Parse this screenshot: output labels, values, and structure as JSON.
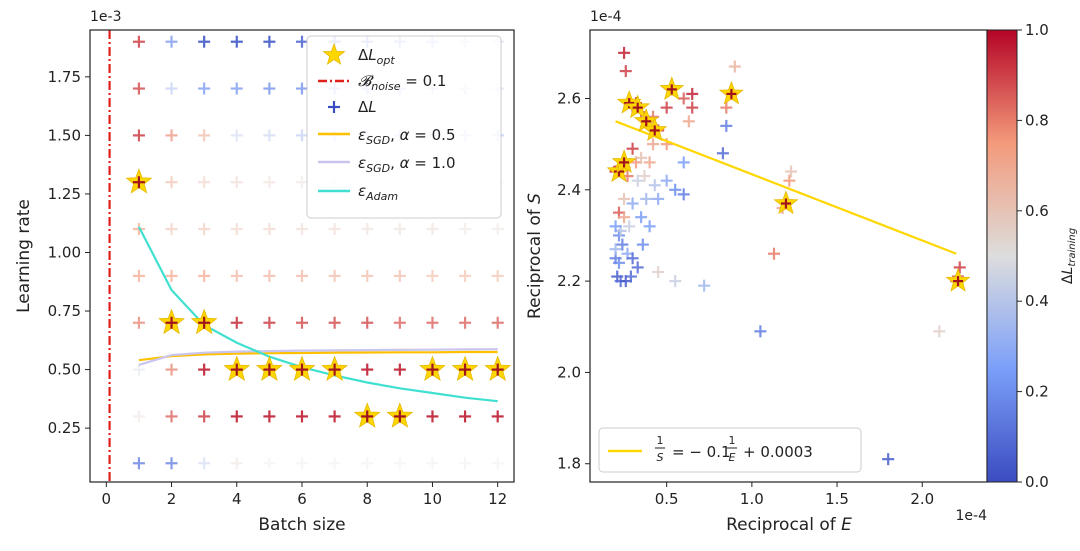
{
  "chart_data": [
    {
      "type": "scatter",
      "xlabel": "Batch size",
      "ylabel": "Learning rate",
      "y_multiplier": "1e-3",
      "xlim": [
        -0.5,
        12.5
      ],
      "ylim": [
        0.02,
        1.95
      ],
      "xticks": [
        0,
        2,
        4,
        6,
        8,
        10,
        12
      ],
      "xtick_labels": [
        "0",
        "2",
        "4",
        "6",
        "8",
        "10",
        "12"
      ],
      "yticks": [
        0.25,
        0.5,
        0.75,
        1.0,
        1.25,
        1.5,
        1.75
      ],
      "ytick_labels": [
        "0.25",
        "0.50",
        "0.75",
        "1.00",
        "1.25",
        "1.50",
        "1.75"
      ],
      "grid": false,
      "legend_position": "top-right",
      "legend": [
        "ΔL_opt",
        "B_noise = 0.1",
        "ΔL",
        "ε_SGD, α = 0.5",
        "ε_SGD, α = 1.0",
        "ε_Adam"
      ],
      "b_noise": 0.1,
      "batch_sizes": [
        1,
        2,
        3,
        4,
        5,
        6,
        7,
        8,
        9,
        10,
        11,
        12
      ],
      "learning_rates": [
        0.1,
        0.3,
        0.5,
        0.7,
        0.9,
        1.1,
        1.3,
        1.5,
        1.7,
        1.9
      ],
      "delta_L_grid": [
        [
          0.15,
          0.15,
          0.4,
          0.55,
          0.5,
          0.5,
          0.5,
          0.5,
          0.5,
          0.5,
          0.5,
          0.5
        ],
        [
          0.55,
          0.85,
          0.9,
          0.95,
          0.95,
          0.95,
          0.95,
          0.95,
          0.95,
          0.95,
          0.95,
          0.95
        ],
        [
          0.45,
          0.8,
          0.95,
          0.95,
          0.95,
          0.95,
          0.95,
          0.95,
          0.95,
          0.95,
          0.95,
          0.95
        ],
        [
          0.8,
          0.95,
          0.95,
          0.92,
          0.9,
          0.88,
          0.88,
          0.88,
          0.85,
          0.85,
          0.85,
          0.85
        ],
        [
          0.75,
          0.75,
          0.75,
          0.72,
          0.72,
          0.72,
          0.7,
          0.7,
          0.7,
          0.68,
          0.68,
          0.68
        ],
        [
          0.75,
          0.65,
          0.65,
          0.62,
          0.62,
          0.6,
          0.6,
          0.58,
          0.58,
          0.58,
          0.55,
          0.55
        ],
        [
          0.95,
          0.68,
          0.62,
          0.6,
          0.58,
          0.55,
          0.55,
          0.52,
          0.52,
          0.5,
          0.5,
          0.5
        ],
        [
          0.9,
          0.78,
          0.7,
          0.4,
          0.38,
          0.35,
          0.33,
          0.32,
          0.32,
          0.32,
          0.32,
          0.32
        ],
        [
          0.88,
          0.35,
          0.2,
          0.2,
          0.18,
          0.18,
          0.2,
          0.25,
          0.28,
          0.32,
          0.35,
          0.4
        ],
        [
          0.9,
          0.2,
          0.05,
          0.05,
          0.05,
          0.08,
          0.12,
          0.15,
          0.2,
          0.25,
          0.35,
          0.4
        ]
      ],
      "delta_L_opt": [
        [
          1,
          1.3
        ],
        [
          2,
          0.7
        ],
        [
          3,
          0.7
        ],
        [
          4,
          0.5
        ],
        [
          5,
          0.5
        ],
        [
          6,
          0.5
        ],
        [
          7,
          0.5
        ],
        [
          8,
          0.3
        ],
        [
          9,
          0.3
        ],
        [
          10,
          0.5
        ],
        [
          11,
          0.5
        ],
        [
          12,
          0.5
        ]
      ],
      "series": [
        {
          "name": "ε_SGD, α = 0.5",
          "color": "#ffc000",
          "x": [
            1,
            2,
            3,
            4,
            5,
            6,
            7,
            8,
            9,
            10,
            11,
            12
          ],
          "y": [
            0.54,
            0.557,
            0.565,
            0.568,
            0.57,
            0.571,
            0.572,
            0.573,
            0.574,
            0.574,
            0.575,
            0.575
          ]
        },
        {
          "name": "ε_SGD, α = 1.0",
          "color": "#c9c5ee",
          "x": [
            1,
            2,
            3,
            4,
            5,
            6,
            7,
            8,
            9,
            10,
            11,
            12
          ],
          "y": [
            0.52,
            0.562,
            0.572,
            0.577,
            0.579,
            0.581,
            0.582,
            0.583,
            0.584,
            0.585,
            0.586,
            0.587
          ]
        },
        {
          "name": "ε_Adam",
          "color": "#40e0d0",
          "x": [
            1,
            2,
            3,
            4,
            5,
            6,
            7,
            8,
            9,
            10,
            11,
            12
          ],
          "y": [
            1.11,
            0.84,
            0.69,
            0.615,
            0.555,
            0.51,
            0.475,
            0.445,
            0.42,
            0.4,
            0.38,
            0.365
          ]
        }
      ]
    },
    {
      "type": "scatter",
      "xlabel": "Reciprocal of E",
      "ylabel": "Reciprocal of S",
      "x_multiplier": "1e-4",
      "y_multiplier": "1e-4",
      "xlim": [
        0.05,
        2.38
      ],
      "ylim": [
        1.76,
        2.75
      ],
      "xticks": [
        0.5,
        1.0,
        1.5,
        2.0
      ],
      "xtick_labels": [
        "0.5",
        "1.0",
        "1.5",
        "2.0"
      ],
      "yticks": [
        1.8,
        2.0,
        2.2,
        2.4,
        2.6
      ],
      "ytick_labels": [
        "1.8",
        "2.0",
        "2.2",
        "2.4",
        "2.6"
      ],
      "grid": false,
      "legend_position": "bottom-left",
      "fit_label": "1/S = − 0.1 (1/E) + 0.0003",
      "fit_line": {
        "x": [
          0.2,
          2.2
        ],
        "y": [
          2.55,
          2.26
        ],
        "color": "#ffd700"
      },
      "colorbar": {
        "label": "ΔL_training",
        "range": [
          0.0,
          1.0
        ],
        "ticks": [
          0.0,
          0.2,
          0.4,
          0.6,
          0.8,
          1.0
        ],
        "tick_labels": [
          "0.0",
          "0.2",
          "0.4",
          "0.6",
          "0.8",
          "1.0"
        ],
        "colormap": "coolwarm"
      },
      "points": [
        [
          0.25,
          2.7,
          0.95
        ],
        [
          0.26,
          2.66,
          0.9
        ],
        [
          0.28,
          2.59,
          0.95
        ],
        [
          0.3,
          2.58,
          0.95
        ],
        [
          0.32,
          2.59,
          0.9
        ],
        [
          0.35,
          2.57,
          0.85
        ],
        [
          0.38,
          2.55,
          0.95
        ],
        [
          0.42,
          2.56,
          0.8
        ],
        [
          0.45,
          2.53,
          0.9
        ],
        [
          0.5,
          2.5,
          0.75
        ],
        [
          0.53,
          2.62,
          0.95
        ],
        [
          0.6,
          2.6,
          0.85
        ],
        [
          0.65,
          2.58,
          0.9
        ],
        [
          0.63,
          2.55,
          0.7
        ],
        [
          0.88,
          2.61,
          0.95
        ],
        [
          0.9,
          2.67,
          0.65
        ],
        [
          0.85,
          2.58,
          0.8
        ],
        [
          0.85,
          2.54,
          0.15
        ],
        [
          0.83,
          2.48,
          0.1
        ],
        [
          0.2,
          2.44,
          0.95
        ],
        [
          0.22,
          2.45,
          0.9
        ],
        [
          0.25,
          2.46,
          0.85
        ],
        [
          0.27,
          2.43,
          0.8
        ],
        [
          0.22,
          2.35,
          0.85
        ],
        [
          0.25,
          2.34,
          0.7
        ],
        [
          0.3,
          2.49,
          0.9
        ],
        [
          0.32,
          2.46,
          0.75
        ],
        [
          0.35,
          2.47,
          0.6
        ],
        [
          0.4,
          2.46,
          0.7
        ],
        [
          0.37,
          2.43,
          0.55
        ],
        [
          0.33,
          2.42,
          0.45
        ],
        [
          0.38,
          2.38,
          0.35
        ],
        [
          0.43,
          2.41,
          0.4
        ],
        [
          0.3,
          2.37,
          0.3
        ],
        [
          0.35,
          2.34,
          0.25
        ],
        [
          0.25,
          2.38,
          0.6
        ],
        [
          0.28,
          2.32,
          0.45
        ],
        [
          0.22,
          2.3,
          0.2
        ],
        [
          0.24,
          2.28,
          0.15
        ],
        [
          0.27,
          2.26,
          0.3
        ],
        [
          0.3,
          2.25,
          0.1
        ],
        [
          0.33,
          2.23,
          0.1
        ],
        [
          0.36,
          2.28,
          0.2
        ],
        [
          0.4,
          2.32,
          0.25
        ],
        [
          0.45,
          2.38,
          0.3
        ],
        [
          0.2,
          2.25,
          0.15
        ],
        [
          0.21,
          2.21,
          0.05
        ],
        [
          0.23,
          2.2,
          0.1
        ],
        [
          0.26,
          2.2,
          0.05
        ],
        [
          0.29,
          2.21,
          0.1
        ],
        [
          0.2,
          2.27,
          0.35
        ],
        [
          0.23,
          2.31,
          0.4
        ],
        [
          0.45,
          2.22,
          0.55
        ],
        [
          0.55,
          2.2,
          0.45
        ],
        [
          0.72,
          2.19,
          0.35
        ],
        [
          0.5,
          2.42,
          0.3
        ],
        [
          0.55,
          2.4,
          0.2
        ],
        [
          0.6,
          2.46,
          0.25
        ],
        [
          0.6,
          2.39,
          0.15
        ],
        [
          1.05,
          2.09,
          0.15
        ],
        [
          1.2,
          2.37,
          0.95
        ],
        [
          1.18,
          2.36,
          0.7
        ],
        [
          1.22,
          2.42,
          0.75
        ],
        [
          1.23,
          2.44,
          0.6
        ],
        [
          1.13,
          2.26,
          0.8
        ],
        [
          1.8,
          1.81,
          0.05
        ],
        [
          2.1,
          2.09,
          0.55
        ],
        [
          2.2,
          2.2,
          0.95
        ],
        [
          2.22,
          2.23,
          0.9
        ],
        [
          2.21,
          2.21,
          0.85
        ],
        [
          0.2,
          2.32,
          0.25
        ],
        [
          0.22,
          2.24,
          0.2
        ],
        [
          0.42,
          2.5,
          0.7
        ],
        [
          0.5,
          2.58,
          0.9
        ],
        [
          0.65,
          2.61,
          0.95
        ]
      ],
      "opt_points": [
        [
          0.22,
          2.44
        ],
        [
          0.25,
          2.46
        ],
        [
          0.28,
          2.59
        ],
        [
          0.33,
          2.58
        ],
        [
          0.38,
          2.55
        ],
        [
          0.43,
          2.53
        ],
        [
          0.53,
          2.62
        ],
        [
          0.88,
          2.61
        ],
        [
          1.2,
          2.37
        ],
        [
          2.21,
          2.2
        ]
      ]
    }
  ]
}
